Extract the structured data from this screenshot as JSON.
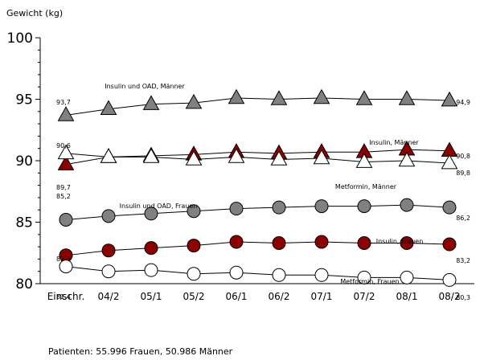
{
  "chart_data": {
    "type": "line",
    "ylabel": "Gewicht (kg)",
    "ylim": [
      80,
      100
    ],
    "yticks": [
      80,
      85,
      90,
      95,
      100
    ],
    "categories": [
      "Einschr.",
      "04/2",
      "05/1",
      "05/2",
      "06/1",
      "06/2",
      "07/1",
      "07/2",
      "08/1",
      "08/2"
    ],
    "footnote": "Patienten: 55.996 Frauen, 50.986 Männer",
    "series": [
      {
        "name": "Insulin und OAD, Männer",
        "marker": "triangle",
        "fill": "#808080",
        "values": [
          93.7,
          94.2,
          94.6,
          94.7,
          95.1,
          95.0,
          95.1,
          95.0,
          95.0,
          94.9
        ],
        "start_label": "93,7",
        "end_label": "94,9"
      },
      {
        "name": "Insulin, Männer",
        "marker": "triangle",
        "fill": "#8b0000",
        "values": [
          89.7,
          90.3,
          90.4,
          90.5,
          90.7,
          90.6,
          90.7,
          90.7,
          90.9,
          90.8
        ],
        "start_label": "89,7",
        "end_label": "90,8"
      },
      {
        "name": "Metformin, Männer",
        "marker": "triangle",
        "fill": "#ffffff",
        "values": [
          90.6,
          90.3,
          90.3,
          90.1,
          90.3,
          90.1,
          90.2,
          89.9,
          90.0,
          89.8
        ],
        "start_label": "90,6",
        "end_label": "89,8"
      },
      {
        "name": "Insulin und OAD, Frauen",
        "marker": "circle",
        "fill": "#808080",
        "values": [
          85.2,
          85.5,
          85.7,
          85.9,
          86.1,
          86.2,
          86.3,
          86.3,
          86.4,
          86.2
        ],
        "start_label": "85,2",
        "end_label": "86,2"
      },
      {
        "name": "Insulin, Frauen",
        "marker": "circle",
        "fill": "#8b0000",
        "values": [
          82.3,
          82.7,
          82.9,
          83.1,
          83.4,
          83.3,
          83.4,
          83.3,
          83.3,
          83.2
        ],
        "start_label": "82,3",
        "end_label": "83,2"
      },
      {
        "name": "Metformin, Frauen",
        "marker": "circle",
        "fill": "#ffffff",
        "values": [
          81.4,
          81.0,
          81.1,
          80.8,
          80.9,
          80.7,
          80.7,
          80.5,
          80.5,
          80.3
        ],
        "start_label": "81,4",
        "end_label": "80,3"
      }
    ]
  }
}
